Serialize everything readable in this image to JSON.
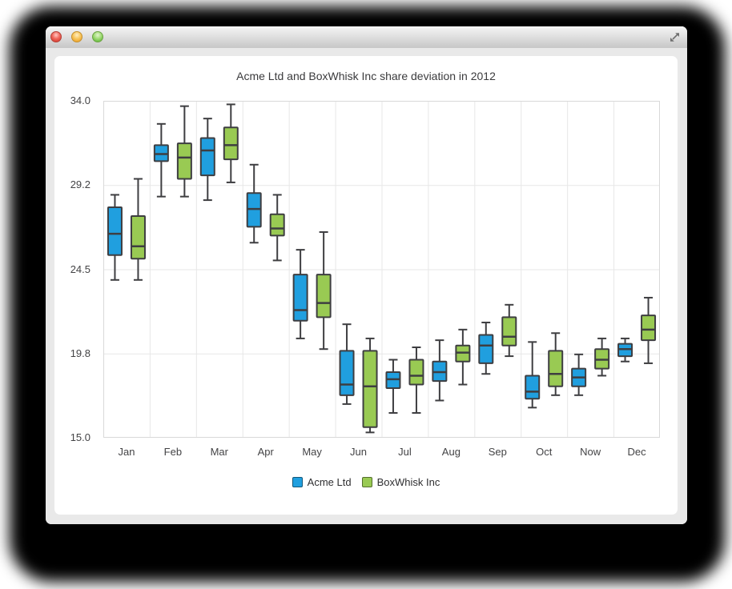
{
  "window": {
    "title": "",
    "controls": {
      "close_color": "#ee655a",
      "minimize_color": "#f6c04f",
      "zoom_color": "#78c74f",
      "fullscreen_icon": "double-diagonal-arrows"
    }
  },
  "chart_data": {
    "type": "boxplot",
    "title": "Acme Ltd and BoxWhisk Inc share deviation in 2012",
    "categories": [
      "Jan",
      "Feb",
      "Mar",
      "Apr",
      "May",
      "Jun",
      "Jul",
      "Aug",
      "Sep",
      "Oct",
      "Now",
      "Dec"
    ],
    "ylim": [
      15.0,
      34.0
    ],
    "y_ticks": [
      {
        "value": 15.0,
        "label": "15.0"
      },
      {
        "value": 19.75,
        "label": "19.8"
      },
      {
        "value": 24.5,
        "label": "24.5"
      },
      {
        "value": 29.25,
        "label": "29.2"
      },
      {
        "value": 34.0,
        "label": "34.0"
      }
    ],
    "grid": true,
    "legend_position": "bottom",
    "box_values_order": [
      "lower_extreme",
      "lower_quartile",
      "median",
      "upper_quartile",
      "upper_extreme"
    ],
    "series": [
      {
        "name": "Acme Ltd",
        "color": "#209fdf",
        "boxes": [
          [
            23.9,
            25.3,
            26.5,
            28.0,
            28.7
          ],
          [
            28.6,
            30.6,
            31.0,
            31.5,
            32.7
          ],
          [
            28.4,
            29.8,
            31.2,
            31.9,
            33.0
          ],
          [
            26.0,
            26.9,
            27.9,
            28.8,
            30.4
          ],
          [
            20.6,
            21.6,
            22.2,
            24.2,
            25.6
          ],
          [
            16.9,
            17.4,
            18.0,
            19.9,
            21.4
          ],
          [
            16.4,
            17.8,
            18.3,
            18.7,
            19.4
          ],
          [
            17.1,
            18.2,
            18.7,
            19.3,
            20.5
          ],
          [
            18.6,
            19.2,
            20.2,
            20.8,
            21.5
          ],
          [
            16.7,
            17.2,
            17.6,
            18.5,
            20.4
          ],
          [
            17.4,
            17.9,
            18.4,
            18.9,
            19.7
          ],
          [
            19.3,
            19.6,
            20.0,
            20.3,
            20.6
          ]
        ]
      },
      {
        "name": "BoxWhisk Inc",
        "color": "#99ca53",
        "boxes": [
          [
            23.9,
            25.1,
            25.8,
            27.5,
            29.6
          ],
          [
            28.6,
            29.6,
            30.8,
            31.6,
            33.7
          ],
          [
            29.4,
            30.7,
            31.5,
            32.5,
            33.8
          ],
          [
            25.0,
            26.4,
            26.8,
            27.6,
            28.7
          ],
          [
            20.0,
            21.8,
            22.6,
            24.2,
            26.6
          ],
          [
            15.3,
            15.6,
            17.9,
            19.9,
            20.6
          ],
          [
            16.4,
            18.0,
            18.5,
            19.4,
            20.1
          ],
          [
            18.0,
            19.3,
            19.8,
            20.2,
            21.1
          ],
          [
            19.6,
            20.2,
            20.7,
            21.8,
            22.5
          ],
          [
            17.4,
            17.9,
            18.6,
            19.9,
            20.9
          ],
          [
            18.5,
            18.9,
            19.4,
            20.0,
            20.6
          ],
          [
            19.2,
            20.5,
            21.1,
            21.9,
            22.9
          ]
        ]
      }
    ],
    "style": {
      "box_border": "#3e3e41",
      "grid_color": "#e7e7e7",
      "axis_color": "#d9d9d9",
      "label_color": "#434345"
    }
  }
}
